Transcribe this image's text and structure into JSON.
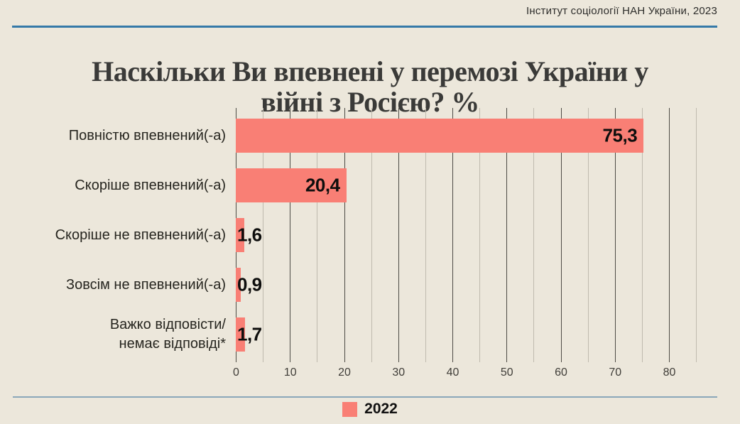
{
  "source": "Інститут соціології НАН України, 2023",
  "title_line1": "Наскільки Ви впевнені у перемозі України у",
  "title_line2": "війні з Росією? %",
  "legend": {
    "label": "2022"
  },
  "colors": {
    "background": "#ece7db",
    "bar": "#f97f75",
    "top_rule": "#3579a8",
    "bottom_rule": "#8aa7b9",
    "title": "#3a3a38"
  },
  "chart_data": {
    "type": "bar",
    "orientation": "horizontal",
    "title": "Наскільки Ви впевнені у перемозі України у війні з Росією? %",
    "source": "Інститут соціології НАН України, 2023",
    "categories": [
      "Повністю впевнений(-а)",
      "Скоріше впевнений(-а)",
      "Скоріше не впевнений(-а)",
      "Зовсім не впевнений(-а)",
      "Важко відповісти/\nнемає відповіді*"
    ],
    "values": [
      75.3,
      20.4,
      1.6,
      0.9,
      1.7
    ],
    "value_labels": [
      "75,3",
      "20,4",
      "1,6",
      "0,9",
      "1,7"
    ],
    "series_name": "2022",
    "xlim": [
      0,
      85
    ],
    "x_ticks": [
      0,
      10,
      20,
      30,
      40,
      50,
      60,
      70,
      80
    ],
    "grid_step_minor": 5,
    "grid": true,
    "legend_position": "bottom",
    "bar_color": "#f97f75"
  }
}
